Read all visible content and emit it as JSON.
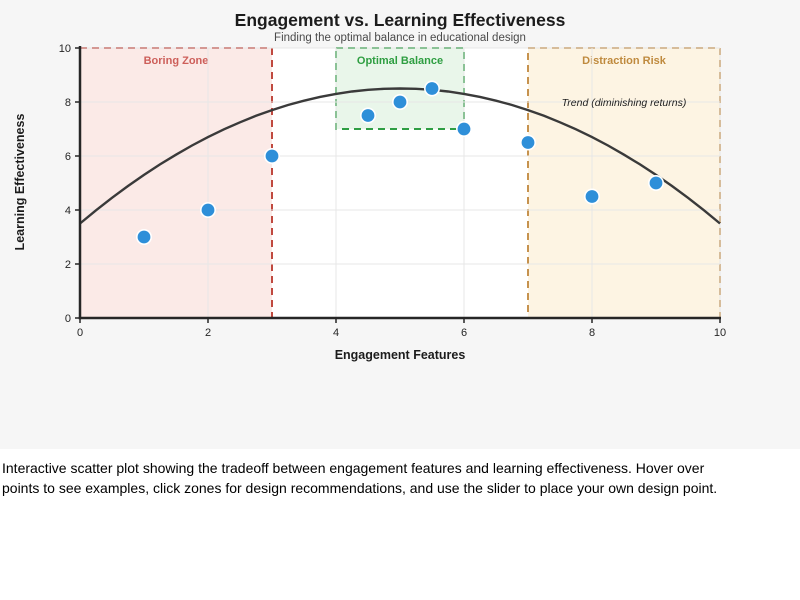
{
  "page": {
    "caption": "Interactive scatter plot showing the tradeoff between engagement features and learning effectiveness. Hover over points to see examples, click zones for design recommendations, and use the slider to place your own design point."
  },
  "chart_data": {
    "type": "scatter",
    "title": "Engagement vs. Learning Effectiveness",
    "subtitle": "Finding the optimal balance in educational design",
    "xlabel": "Engagement Features",
    "ylabel": "Learning Effectiveness",
    "xlim": [
      0,
      10
    ],
    "ylim": [
      0,
      10
    ],
    "xticks": [
      0,
      2,
      4,
      6,
      8,
      10
    ],
    "yticks": [
      0,
      2,
      4,
      6,
      8,
      10
    ],
    "grid": true,
    "grid_color": "#e7e7e7",
    "axis_color": "#262626",
    "tick_label_color": "#262626",
    "plot_bg": "#ffffff",
    "point_color": "#2e8fd9",
    "point_edge_color": "#ffffff",
    "points": [
      {
        "x": 1,
        "y": 3
      },
      {
        "x": 2,
        "y": 4
      },
      {
        "x": 3,
        "y": 6
      },
      {
        "x": 4.5,
        "y": 7.5
      },
      {
        "x": 5,
        "y": 8
      },
      {
        "x": 5.5,
        "y": 8.5
      },
      {
        "x": 6,
        "y": 7
      },
      {
        "x": 7,
        "y": 6.5
      },
      {
        "x": 8,
        "y": 4.5
      },
      {
        "x": 9,
        "y": 5
      }
    ],
    "trend": {
      "label": "Trend (diminishing returns)",
      "shape": "parabola",
      "peak_x": 5,
      "peak_y": 8.5,
      "coeff": -0.2,
      "x_start": 0,
      "x_end": 10,
      "color": "#3a3a3a",
      "label_x": 8.5,
      "label_y": 7.85
    },
    "zones": [
      {
        "label": "Boring Zone",
        "x0": 0,
        "x1": 3,
        "y0": 0,
        "y1": 10,
        "fill": "#fbeae7",
        "border": "#c0493f",
        "label_color": "#cd5f5a"
      },
      {
        "label": "Optimal Balance",
        "x0": 4,
        "x1": 6,
        "y0": 7,
        "y1": 10,
        "fill": "#e9f6ea",
        "border": "#2f9e44",
        "label_color": "#2e9e41"
      },
      {
        "label": "Distraction Risk",
        "x0": 7,
        "x1": 10,
        "y0": 0,
        "y1": 10,
        "fill": "#fdf4e3",
        "border": "#c6924e",
        "label_color": "#bf8a3e"
      }
    ],
    "legend": null
  }
}
